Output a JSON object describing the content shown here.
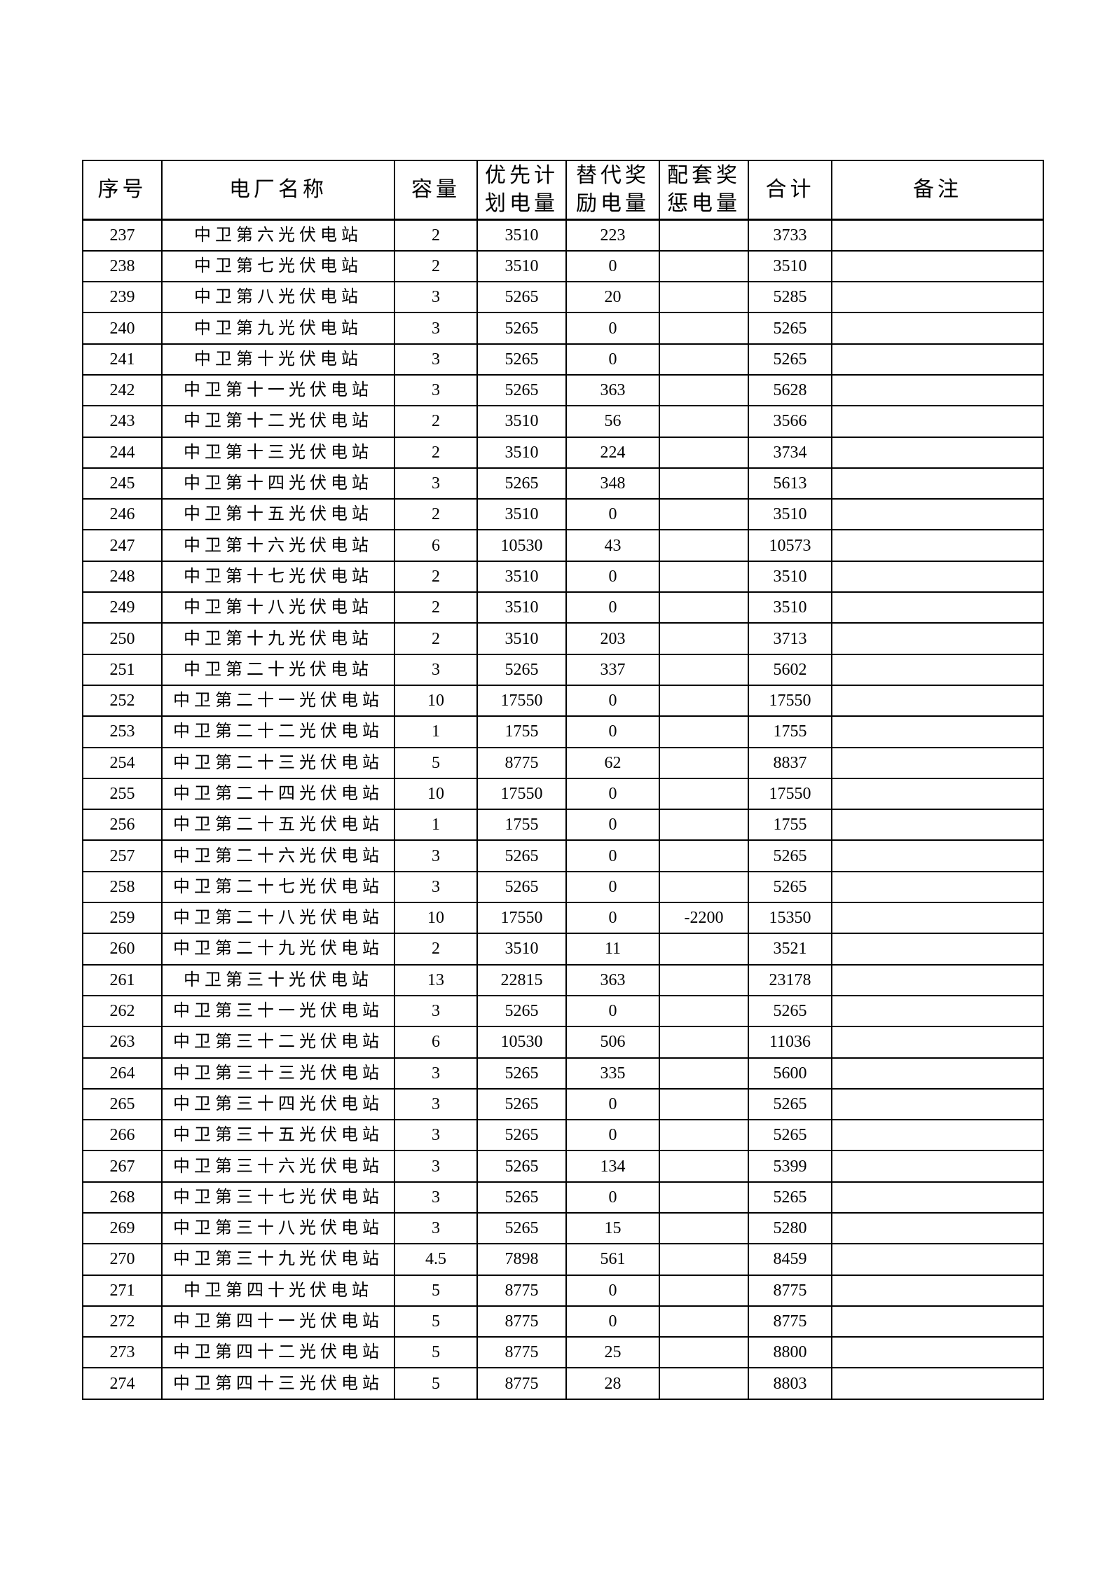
{
  "page": {
    "background": "#ffffff",
    "border_color": "#000000"
  },
  "table": {
    "columns": [
      {
        "key": "index",
        "label": "序号"
      },
      {
        "key": "name",
        "label": "电厂名称"
      },
      {
        "key": "capacity",
        "label": "容量"
      },
      {
        "key": "priority",
        "label": "优先计\n划电量"
      },
      {
        "key": "replacement",
        "label": "替代奖\n励电量"
      },
      {
        "key": "supporting",
        "label": "配套奖\n惩电量"
      },
      {
        "key": "total",
        "label": "合计"
      },
      {
        "key": "remark",
        "label": "备注"
      }
    ],
    "rows": [
      {
        "index": "237",
        "name": "中卫第六光伏电站",
        "capacity": "2",
        "priority": "3510",
        "replacement": "223",
        "supporting": "",
        "total": "3733",
        "remark": ""
      },
      {
        "index": "238",
        "name": "中卫第七光伏电站",
        "capacity": "2",
        "priority": "3510",
        "replacement": "0",
        "supporting": "",
        "total": "3510",
        "remark": ""
      },
      {
        "index": "239",
        "name": "中卫第八光伏电站",
        "capacity": "3",
        "priority": "5265",
        "replacement": "20",
        "supporting": "",
        "total": "5285",
        "remark": ""
      },
      {
        "index": "240",
        "name": "中卫第九光伏电站",
        "capacity": "3",
        "priority": "5265",
        "replacement": "0",
        "supporting": "",
        "total": "5265",
        "remark": ""
      },
      {
        "index": "241",
        "name": "中卫第十光伏电站",
        "capacity": "3",
        "priority": "5265",
        "replacement": "0",
        "supporting": "",
        "total": "5265",
        "remark": ""
      },
      {
        "index": "242",
        "name": "中卫第十一光伏电站",
        "capacity": "3",
        "priority": "5265",
        "replacement": "363",
        "supporting": "",
        "total": "5628",
        "remark": ""
      },
      {
        "index": "243",
        "name": "中卫第十二光伏电站",
        "capacity": "2",
        "priority": "3510",
        "replacement": "56",
        "supporting": "",
        "total": "3566",
        "remark": ""
      },
      {
        "index": "244",
        "name": "中卫第十三光伏电站",
        "capacity": "2",
        "priority": "3510",
        "replacement": "224",
        "supporting": "",
        "total": "3734",
        "remark": ""
      },
      {
        "index": "245",
        "name": "中卫第十四光伏电站",
        "capacity": "3",
        "priority": "5265",
        "replacement": "348",
        "supporting": "",
        "total": "5613",
        "remark": ""
      },
      {
        "index": "246",
        "name": "中卫第十五光伏电站",
        "capacity": "2",
        "priority": "3510",
        "replacement": "0",
        "supporting": "",
        "total": "3510",
        "remark": ""
      },
      {
        "index": "247",
        "name": "中卫第十六光伏电站",
        "capacity": "6",
        "priority": "10530",
        "replacement": "43",
        "supporting": "",
        "total": "10573",
        "remark": ""
      },
      {
        "index": "248",
        "name": "中卫第十七光伏电站",
        "capacity": "2",
        "priority": "3510",
        "replacement": "0",
        "supporting": "",
        "total": "3510",
        "remark": ""
      },
      {
        "index": "249",
        "name": "中卫第十八光伏电站",
        "capacity": "2",
        "priority": "3510",
        "replacement": "0",
        "supporting": "",
        "total": "3510",
        "remark": ""
      },
      {
        "index": "250",
        "name": "中卫第十九光伏电站",
        "capacity": "2",
        "priority": "3510",
        "replacement": "203",
        "supporting": "",
        "total": "3713",
        "remark": ""
      },
      {
        "index": "251",
        "name": "中卫第二十光伏电站",
        "capacity": "3",
        "priority": "5265",
        "replacement": "337",
        "supporting": "",
        "total": "5602",
        "remark": ""
      },
      {
        "index": "252",
        "name": "中卫第二十一光伏电站",
        "capacity": "10",
        "priority": "17550",
        "replacement": "0",
        "supporting": "",
        "total": "17550",
        "remark": ""
      },
      {
        "index": "253",
        "name": "中卫第二十二光伏电站",
        "capacity": "1",
        "priority": "1755",
        "replacement": "0",
        "supporting": "",
        "total": "1755",
        "remark": ""
      },
      {
        "index": "254",
        "name": "中卫第二十三光伏电站",
        "capacity": "5",
        "priority": "8775",
        "replacement": "62",
        "supporting": "",
        "total": "8837",
        "remark": ""
      },
      {
        "index": "255",
        "name": "中卫第二十四光伏电站",
        "capacity": "10",
        "priority": "17550",
        "replacement": "0",
        "supporting": "",
        "total": "17550",
        "remark": ""
      },
      {
        "index": "256",
        "name": "中卫第二十五光伏电站",
        "capacity": "1",
        "priority": "1755",
        "replacement": "0",
        "supporting": "",
        "total": "1755",
        "remark": ""
      },
      {
        "index": "257",
        "name": "中卫第二十六光伏电站",
        "capacity": "3",
        "priority": "5265",
        "replacement": "0",
        "supporting": "",
        "total": "5265",
        "remark": ""
      },
      {
        "index": "258",
        "name": "中卫第二十七光伏电站",
        "capacity": "3",
        "priority": "5265",
        "replacement": "0",
        "supporting": "",
        "total": "5265",
        "remark": ""
      },
      {
        "index": "259",
        "name": "中卫第二十八光伏电站",
        "capacity": "10",
        "priority": "17550",
        "replacement": "0",
        "supporting": "-2200",
        "total": "15350",
        "remark": ""
      },
      {
        "index": "260",
        "name": "中卫第二十九光伏电站",
        "capacity": "2",
        "priority": "3510",
        "replacement": "11",
        "supporting": "",
        "total": "3521",
        "remark": ""
      },
      {
        "index": "261",
        "name": "中卫第三十光伏电站",
        "capacity": "13",
        "priority": "22815",
        "replacement": "363",
        "supporting": "",
        "total": "23178",
        "remark": ""
      },
      {
        "index": "262",
        "name": "中卫第三十一光伏电站",
        "capacity": "3",
        "priority": "5265",
        "replacement": "0",
        "supporting": "",
        "total": "5265",
        "remark": ""
      },
      {
        "index": "263",
        "name": "中卫第三十二光伏电站",
        "capacity": "6",
        "priority": "10530",
        "replacement": "506",
        "supporting": "",
        "total": "11036",
        "remark": ""
      },
      {
        "index": "264",
        "name": "中卫第三十三光伏电站",
        "capacity": "3",
        "priority": "5265",
        "replacement": "335",
        "supporting": "",
        "total": "5600",
        "remark": ""
      },
      {
        "index": "265",
        "name": "中卫第三十四光伏电站",
        "capacity": "3",
        "priority": "5265",
        "replacement": "0",
        "supporting": "",
        "total": "5265",
        "remark": ""
      },
      {
        "index": "266",
        "name": "中卫第三十五光伏电站",
        "capacity": "3",
        "priority": "5265",
        "replacement": "0",
        "supporting": "",
        "total": "5265",
        "remark": ""
      },
      {
        "index": "267",
        "name": "中卫第三十六光伏电站",
        "capacity": "3",
        "priority": "5265",
        "replacement": "134",
        "supporting": "",
        "total": "5399",
        "remark": ""
      },
      {
        "index": "268",
        "name": "中卫第三十七光伏电站",
        "capacity": "3",
        "priority": "5265",
        "replacement": "0",
        "supporting": "",
        "total": "5265",
        "remark": ""
      },
      {
        "index": "269",
        "name": "中卫第三十八光伏电站",
        "capacity": "3",
        "priority": "5265",
        "replacement": "15",
        "supporting": "",
        "total": "5280",
        "remark": ""
      },
      {
        "index": "270",
        "name": "中卫第三十九光伏电站",
        "capacity": "4.5",
        "priority": "7898",
        "replacement": "561",
        "supporting": "",
        "total": "8459",
        "remark": ""
      },
      {
        "index": "271",
        "name": "中卫第四十光伏电站",
        "capacity": "5",
        "priority": "8775",
        "replacement": "0",
        "supporting": "",
        "total": "8775",
        "remark": ""
      },
      {
        "index": "272",
        "name": "中卫第四十一光伏电站",
        "capacity": "5",
        "priority": "8775",
        "replacement": "0",
        "supporting": "",
        "total": "8775",
        "remark": ""
      },
      {
        "index": "273",
        "name": "中卫第四十二光伏电站",
        "capacity": "5",
        "priority": "8775",
        "replacement": "25",
        "supporting": "",
        "total": "8800",
        "remark": ""
      },
      {
        "index": "274",
        "name": "中卫第四十三光伏电站",
        "capacity": "5",
        "priority": "8775",
        "replacement": "28",
        "supporting": "",
        "total": "8803",
        "remark": ""
      }
    ]
  }
}
